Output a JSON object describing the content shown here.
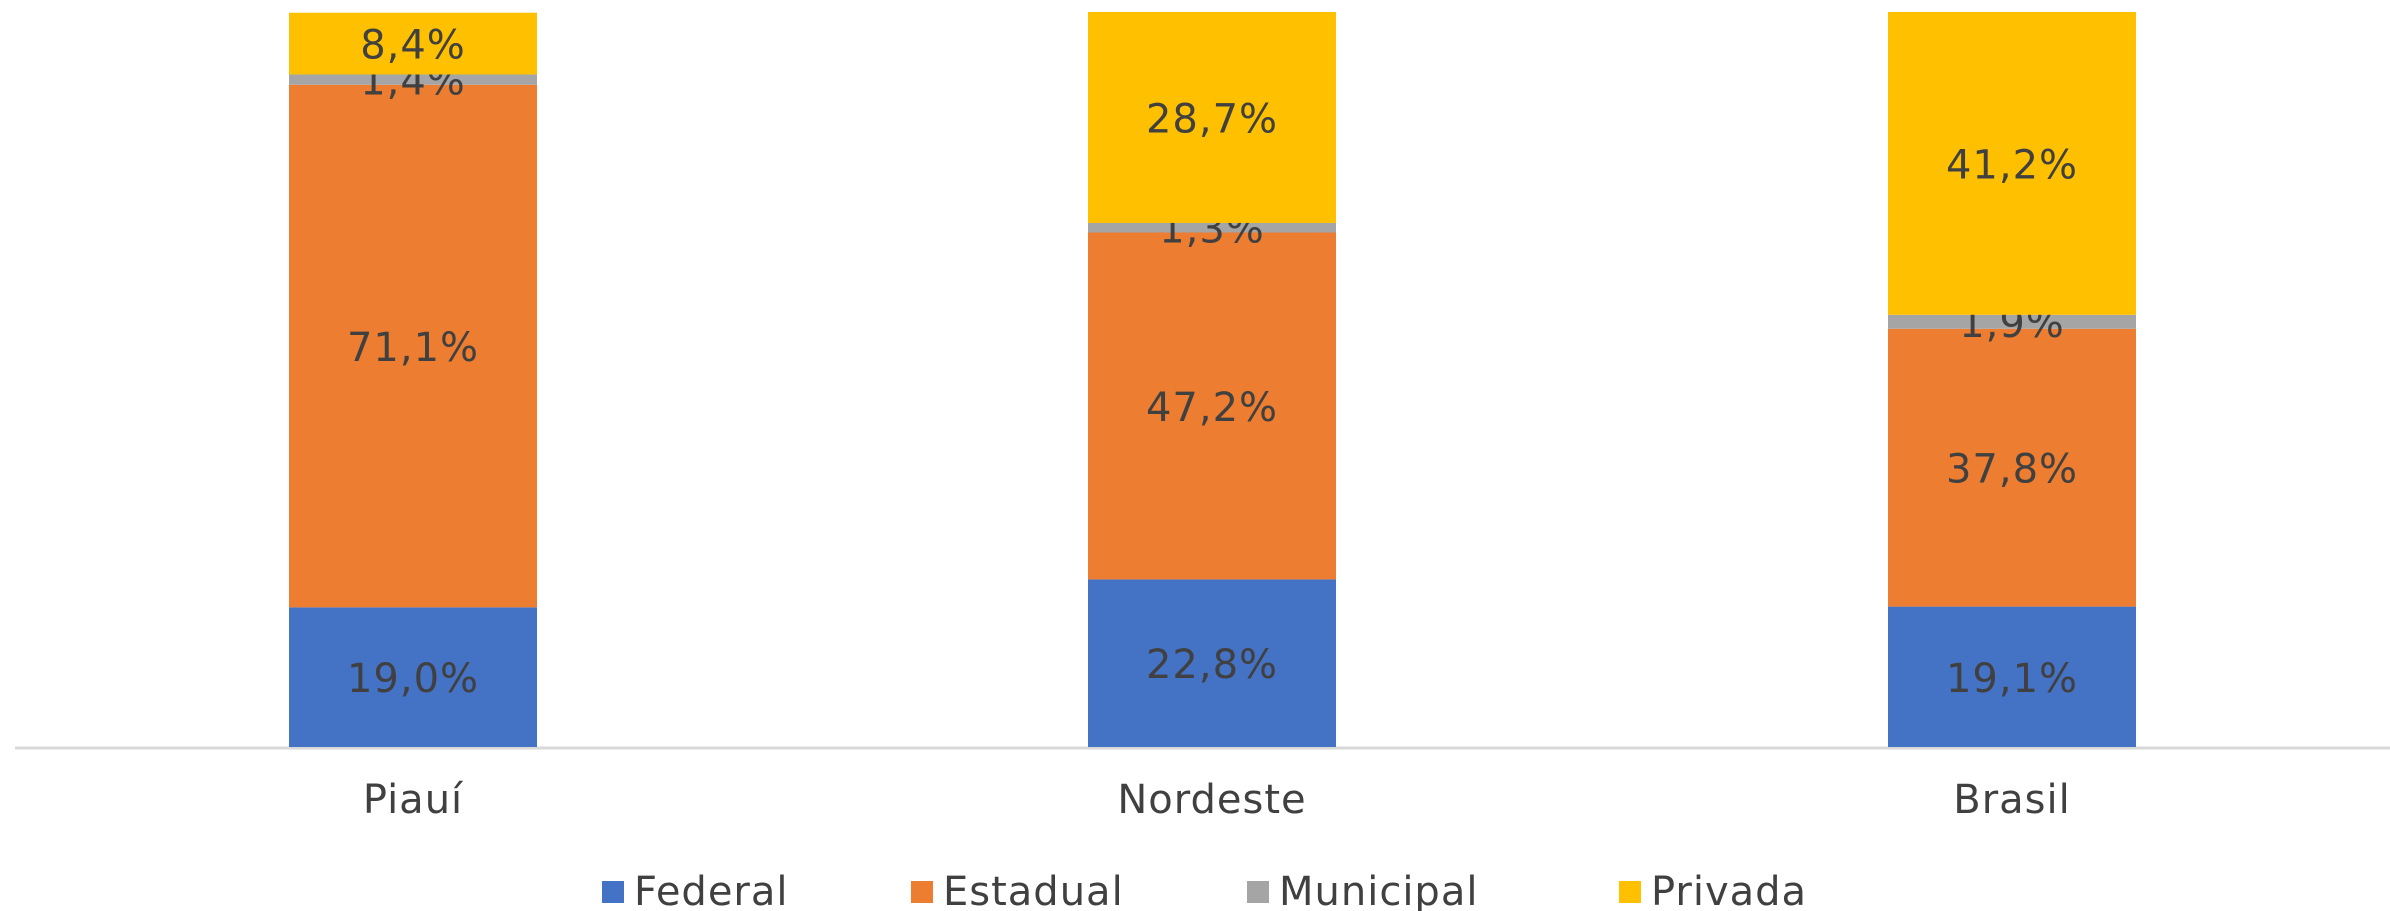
{
  "chart_data": {
    "type": "stacked_bar",
    "categories": [
      "Piauí",
      "Nordeste",
      "Brasil"
    ],
    "series": [
      {
        "name": "Federal",
        "color": "#4472c4",
        "values": [
          19.0,
          22.8,
          19.1
        ],
        "value_labels": [
          "19,0%",
          "22,8%",
          "19,1%"
        ]
      },
      {
        "name": "Estadual",
        "color": "#ed7d31",
        "values": [
          71.1,
          47.2,
          37.8
        ],
        "value_labels": [
          "71,1%",
          "47,2%",
          "37,8%"
        ]
      },
      {
        "name": "Municipal",
        "color": "#a5a5a5",
        "values": [
          1.4,
          1.3,
          1.9
        ],
        "value_labels": [
          "1,4%",
          "1,3%",
          "1,9%"
        ]
      },
      {
        "name": "Privada",
        "color": "#ffc000",
        "values": [
          8.4,
          28.7,
          41.2
        ],
        "value_labels": [
          "8,4%",
          "28,7%",
          "41,2%"
        ]
      }
    ],
    "ylim": [
      0,
      100
    ],
    "legend": "bottom"
  }
}
